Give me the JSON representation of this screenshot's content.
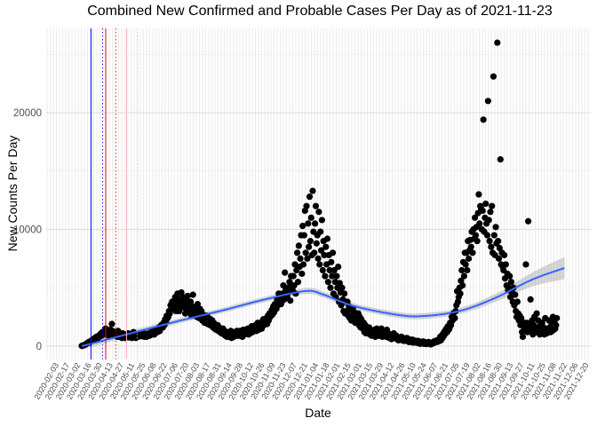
{
  "chart_data": {
    "type": "scatter",
    "title": "Combined New Confirmed and Probable Cases Per Day as of 2021-11-23",
    "xlabel": "Date",
    "ylabel": "New Counts Per Day",
    "xlim": [
      "2020-01-22",
      "2021-12-27"
    ],
    "ylim": [
      -1140,
      27220
    ],
    "y_ticks": [
      0,
      10000,
      20000
    ],
    "y_tick_labels": [
      "0",
      "10000",
      "20000"
    ],
    "y_minor_ticks": [
      5000,
      15000,
      25000
    ],
    "grid": true,
    "point_color": "#000000",
    "x_tick_labels": [
      "2020-02-03",
      "2020-02-17",
      "2020-03-02",
      "2020-03-16",
      "2020-03-30",
      "2020-04-13",
      "2020-04-27",
      "2020-05-11",
      "2020-05-25",
      "2020-06-08",
      "2020-06-22",
      "2020-07-06",
      "2020-07-20",
      "2020-08-03",
      "2020-08-17",
      "2020-08-31",
      "2020-09-14",
      "2020-09-28",
      "2020-10-12",
      "2020-10-26",
      "2020-11-09",
      "2020-11-23",
      "2020-12-07",
      "2020-12-21",
      "2021-01-04",
      "2021-01-18",
      "2021-02-01",
      "2021-02-15",
      "2021-03-01",
      "2021-03-15",
      "2021-03-29",
      "2021-04-12",
      "2021-04-26",
      "2021-05-10",
      "2021-05-24",
      "2021-06-07",
      "2021-06-21",
      "2021-07-05",
      "2021-07-19",
      "2021-08-02",
      "2021-08-16",
      "2021-08-30",
      "2021-09-13",
      "2021-09-27",
      "2021-10-11",
      "2021-10-25",
      "2021-11-08",
      "2021-11-22",
      "2021-12-06",
      "2021-12-20"
    ],
    "x_tick_colors": [
      "#4d4d4d",
      "#3b6fb6",
      "#c8702a",
      "#4d4d4d",
      "#7a5aa8"
    ],
    "daily_counts_by_week": [
      {
        "week_of": "2020-03-08",
        "values": [
          20,
          40,
          60,
          90,
          120,
          150,
          200
        ]
      },
      {
        "week_of": "2020-03-15",
        "values": [
          250,
          300,
          350,
          300,
          400,
          450,
          500
        ]
      },
      {
        "week_of": "2020-03-22",
        "values": [
          500,
          600,
          550,
          700,
          650,
          800,
          750
        ]
      },
      {
        "week_of": "2020-03-29",
        "values": [
          700,
          900,
          800,
          1000,
          1100,
          900,
          1200
        ]
      },
      {
        "week_of": "2020-04-05",
        "values": [
          1000,
          1300,
          1100,
          1500,
          1200,
          1400,
          1000
        ]
      },
      {
        "week_of": "2020-04-12",
        "values": [
          900,
          1200,
          1400,
          1100,
          1900,
          1300,
          1000
        ]
      },
      {
        "week_of": "2020-04-19",
        "values": [
          1000,
          1200,
          900,
          1100,
          800,
          1300,
          1000
        ]
      },
      {
        "week_of": "2020-04-26",
        "values": [
          800,
          1000,
          900,
          700,
          1100,
          850,
          900
        ]
      },
      {
        "week_of": "2020-05-03",
        "values": [
          700,
          900,
          1000,
          800,
          1100,
          750,
          950
        ]
      },
      {
        "week_of": "2020-05-10",
        "values": [
          800,
          1000,
          700,
          900,
          1200,
          850,
          1000
        ]
      },
      {
        "week_of": "2020-05-17",
        "values": [
          700,
          900,
          1000,
          800,
          950,
          1100,
          850
        ]
      },
      {
        "week_of": "2020-05-24",
        "values": [
          900,
          1000,
          850,
          1100,
          800,
          950,
          1050
        ]
      },
      {
        "week_of": "2020-05-31",
        "values": [
          800,
          950,
          1000,
          1100,
          900,
          1050,
          1200
        ]
      },
      {
        "week_of": "2020-06-07",
        "values": [
          1000,
          1100,
          1250,
          1000,
          1300,
          1150,
          1400
        ]
      },
      {
        "week_of": "2020-06-14",
        "values": [
          1200,
          1400,
          1600,
          1300,
          1500,
          1800,
          1700
        ]
      },
      {
        "week_of": "2020-06-21",
        "values": [
          1600,
          2000,
          1800,
          2300,
          2100,
          2600,
          2400
        ]
      },
      {
        "week_of": "2020-06-28",
        "values": [
          2500,
          3000,
          2800,
          3500,
          3200,
          3800,
          3400
        ]
      },
      {
        "week_of": "2020-07-05",
        "values": [
          3200,
          3600,
          4200,
          3000,
          3800,
          4500,
          3400
        ]
      },
      {
        "week_of": "2020-07-12",
        "values": [
          3000,
          4000,
          3600,
          4600,
          3300,
          4200,
          3800
        ]
      },
      {
        "week_of": "2020-07-19",
        "values": [
          3500,
          2800,
          4000,
          3200,
          4300,
          2900,
          3600
        ]
      },
      {
        "week_of": "2020-07-26",
        "values": [
          3000,
          3800,
          2600,
          3400,
          4400,
          3100,
          2700
        ]
      },
      {
        "week_of": "2020-08-02",
        "values": [
          2800,
          3300,
          2500,
          3600,
          2900,
          2400,
          3200
        ]
      },
      {
        "week_of": "2020-08-09",
        "values": [
          2400,
          3000,
          2200,
          2700,
          2500,
          2000,
          2600
        ]
      },
      {
        "week_of": "2020-08-16",
        "values": [
          2100,
          2600,
          1900,
          2400,
          2200,
          1800,
          2300
        ]
      },
      {
        "week_of": "2020-08-23",
        "values": [
          1900,
          2200,
          1600,
          2000,
          1500,
          1800,
          1400
        ]
      },
      {
        "week_of": "2020-08-30",
        "values": [
          1500,
          1800,
          1300,
          1600,
          1200,
          1400,
          1100
        ]
      },
      {
        "week_of": "2020-09-06",
        "values": [
          1200,
          1500,
          1000,
          1300,
          900,
          1100,
          800
        ]
      },
      {
        "week_of": "2020-09-13",
        "values": [
          900,
          1200,
          800,
          1000,
          1300,
          700,
          1100
        ]
      },
      {
        "week_of": "2020-09-20",
        "values": [
          1000,
          800,
          1200,
          900,
          1100,
          1300,
          900
        ]
      },
      {
        "week_of": "2020-09-27",
        "values": [
          1100,
          900,
          1300,
          1000,
          1200,
          800,
          1400
        ]
      },
      {
        "week_of": "2020-10-04",
        "values": [
          1200,
          1000,
          1400,
          1100,
          1300,
          1500,
          1000
        ]
      },
      {
        "week_of": "2020-10-11",
        "values": [
          1300,
          1100,
          1500,
          1700,
          1200,
          1400,
          1600
        ]
      },
      {
        "week_of": "2020-10-18",
        "values": [
          1500,
          1800,
          1300,
          1600,
          2000,
          1400,
          1700
        ]
      },
      {
        "week_of": "2020-10-25",
        "values": [
          1700,
          2000,
          1500,
          1900,
          2300,
          1800,
          2100
        ]
      },
      {
        "week_of": "2020-11-01",
        "values": [
          2000,
          2400,
          1900,
          2600,
          2200,
          2800,
          2500
        ]
      },
      {
        "week_of": "2020-11-08",
        "values": [
          2600,
          3100,
          2700,
          3400,
          2900,
          3600,
          3200
        ]
      },
      {
        "week_of": "2020-11-15",
        "values": [
          3200,
          4000,
          3500,
          4500,
          3800,
          4200,
          3600
        ]
      },
      {
        "week_of": "2020-11-22",
        "values": [
          3800,
          4500,
          5200,
          4000,
          6300,
          4800,
          4300
        ]
      },
      {
        "week_of": "2020-11-29",
        "values": [
          4200,
          5000,
          4600,
          5500,
          3900,
          6000,
          5200
        ]
      },
      {
        "week_of": "2020-12-06",
        "values": [
          4800,
          6000,
          5200,
          7000,
          4500,
          6500,
          8000
        ]
      },
      {
        "week_of": "2020-12-13",
        "values": [
          5500,
          8600,
          6800,
          7500,
          9500,
          6200,
          10300
        ]
      },
      {
        "week_of": "2020-12-20",
        "values": [
          7000,
          9500,
          11600,
          8000,
          12000,
          7500,
          10500
        ]
      },
      {
        "week_of": "2020-12-27",
        "values": [
          8500,
          12800,
          9000,
          11000,
          7800,
          13300,
          9800
        ]
      },
      {
        "week_of": "2021-01-03",
        "values": [
          8000,
          10500,
          12000,
          8800,
          9500,
          7500,
          11500
        ]
      },
      {
        "week_of": "2021-01-10",
        "values": [
          7000,
          9800,
          8200,
          10800,
          6500,
          9000,
          7800
        ]
      },
      {
        "week_of": "2021-01-17",
        "values": [
          6000,
          8500,
          7000,
          9200,
          5500,
          7800,
          6500
        ]
      },
      {
        "week_of": "2021-01-24",
        "values": [
          5000,
          7200,
          6000,
          8000,
          4500,
          6500,
          5500
        ]
      },
      {
        "week_of": "2021-01-31",
        "values": [
          4200,
          6000,
          5000,
          6800,
          3800,
          5400,
          4600
        ]
      },
      {
        "week_of": "2021-02-07",
        "values": [
          3500,
          5000,
          4000,
          3000,
          4500,
          2800,
          3800
        ]
      },
      {
        "week_of": "2021-02-14",
        "values": [
          3000,
          3800,
          2600,
          3400,
          2400,
          3100,
          2200
        ]
      },
      {
        "week_of": "2021-02-21",
        "values": [
          2600,
          3200,
          2200,
          2900,
          2000,
          2700,
          2400
        ]
      },
      {
        "week_of": "2021-02-28",
        "values": [
          2200,
          2800,
          1800,
          2500,
          1600,
          2300,
          2000
        ]
      },
      {
        "week_of": "2021-03-07",
        "values": [
          1500,
          2000,
          1200,
          1800,
          1100,
          1600,
          1400
        ]
      },
      {
        "week_of": "2021-03-14",
        "values": [
          1200,
          1600,
          1000,
          1400,
          900,
          1300,
          1100
        ]
      },
      {
        "week_of": "2021-03-21",
        "values": [
          1000,
          1400,
          800,
          1200,
          1500,
          900,
          1100
        ]
      },
      {
        "week_of": "2021-03-28",
        "values": [
          900,
          1300,
          1000,
          1500,
          800,
          1200,
          1100
        ]
      },
      {
        "week_of": "2021-04-04",
        "values": [
          1000,
          1200,
          800,
          1400,
          900,
          1100,
          700
        ]
      },
      {
        "week_of": "2021-04-11",
        "values": [
          800,
          1000,
          600,
          900,
          700,
          1100,
          800
        ]
      },
      {
        "week_of": "2021-04-18",
        "values": [
          700,
          900,
          600,
          800,
          500,
          750,
          650
        ]
      },
      {
        "week_of": "2021-04-25",
        "values": [
          600,
          800,
          500,
          700,
          450,
          650,
          550
        ]
      },
      {
        "week_of": "2021-05-02",
        "values": [
          500,
          700,
          400,
          600,
          350,
          550,
          450
        ]
      },
      {
        "week_of": "2021-05-09",
        "values": [
          400,
          550,
          300,
          500,
          350,
          450,
          300
        ]
      },
      {
        "week_of": "2021-05-16",
        "values": [
          300,
          450,
          250,
          400,
          200,
          350,
          300
        ]
      },
      {
        "week_of": "2021-05-23",
        "values": [
          250,
          400,
          200,
          350,
          300,
          180,
          280
        ]
      },
      {
        "week_of": "2021-05-30",
        "values": [
          200,
          350,
          250,
          300,
          150,
          280,
          220
        ]
      },
      {
        "week_of": "2021-06-06",
        "values": [
          250,
          400,
          300,
          450,
          350,
          500,
          400
        ]
      },
      {
        "week_of": "2021-06-13",
        "values": [
          400,
          600,
          800,
          500,
          900,
          700,
          1100
        ]
      },
      {
        "week_of": "2021-06-20",
        "values": [
          900,
          1300,
          1100,
          1500,
          1200,
          1700,
          1400
        ]
      },
      {
        "week_of": "2021-06-27",
        "values": [
          1500,
          2000,
          1800,
          2500,
          2200,
          2800,
          2400
        ]
      },
      {
        "week_of": "2021-07-04",
        "values": [
          2400,
          3000,
          3500,
          4700,
          3800,
          4200,
          5000
        ]
      },
      {
        "week_of": "2021-07-11",
        "values": [
          4500,
          5600,
          6500,
          5200,
          7200,
          6000,
          8000
        ]
      },
      {
        "week_of": "2021-07-18",
        "values": [
          7000,
          8000,
          6500,
          9000,
          7500,
          8200,
          9100
        ]
      },
      {
        "week_of": "2021-07-25",
        "values": [
          8500,
          9800,
          8000,
          10000,
          9200,
          11000,
          9500
        ]
      },
      {
        "week_of": "2021-08-01",
        "values": [
          10200,
          9000,
          11400,
          13000,
          10500,
          12000,
          11800
        ]
      },
      {
        "week_of": "2021-08-08",
        "values": [
          10000,
          11600,
          19400,
          9800,
          11000,
          12200,
          10500
        ]
      },
      {
        "week_of": "2021-08-15",
        "values": [
          9500,
          21000,
          10800,
          9000,
          11500,
          8500,
          12000
        ]
      },
      {
        "week_of": "2021-08-22",
        "values": [
          8000,
          23100,
          9500,
          7800,
          10200,
          8800,
          26000
        ]
      },
      {
        "week_of": "2021-08-29",
        "values": [
          9000,
          7500,
          8400,
          16000,
          7000,
          8000,
          6800
        ]
      },
      {
        "week_of": "2021-09-05",
        "values": [
          6500,
          7800,
          5800,
          7000,
          5200,
          6200,
          4800
        ]
      },
      {
        "week_of": "2021-09-12",
        "values": [
          5000,
          6000,
          4200,
          5500,
          4600,
          3800,
          5000
        ]
      },
      {
        "week_of": "2021-09-19",
        "values": [
          3500,
          4400,
          3000,
          2500,
          3800,
          2800,
          2200
        ]
      },
      {
        "week_of": "2021-09-26",
        "values": [
          2600,
          1800,
          2400,
          1200,
          800,
          2000,
          1500
        ]
      },
      {
        "week_of": "2021-10-03",
        "values": [
          1500,
          7000,
          2000,
          1200,
          10700,
          1800,
          1300
        ]
      },
      {
        "week_of": "2021-10-10",
        "values": [
          4000,
          1500,
          2200,
          1000,
          1800,
          2500,
          1300
        ]
      },
      {
        "week_of": "2021-10-17",
        "values": [
          1200,
          2800,
          1600,
          2200,
          1400,
          1000,
          1800
        ]
      },
      {
        "week_of": "2021-10-24",
        "values": [
          1300,
          2000,
          1100,
          1600,
          1000,
          2400,
          1200
        ]
      },
      {
        "week_of": "2021-10-31",
        "values": [
          1100,
          1500,
          1300,
          2200,
          1600,
          1200,
          2000
        ]
      },
      {
        "week_of": "2021-11-07",
        "values": [
          1300,
          2500,
          1400,
          2000,
          1500,
          1800,
          2400
        ]
      }
    ],
    "smooth": {
      "color": "#3366FF",
      "band_color": "#999999",
      "x": [
        "2020-03-08",
        "2020-05-13",
        "2020-07-10",
        "2020-09-05",
        "2020-11-02",
        "2020-12-23",
        "2021-01-15",
        "2021-02-24",
        "2021-04-23",
        "2021-05-27",
        "2021-07-12",
        "2021-08-27",
        "2021-10-12",
        "2021-11-23"
      ],
      "y": [
        0,
        1140,
        2130,
        3040,
        4030,
        4720,
        4410,
        3420,
        2660,
        2590,
        3040,
        4180,
        5700,
        6690
      ],
      "se": [
        300,
        250,
        220,
        220,
        230,
        260,
        260,
        240,
        250,
        250,
        260,
        350,
        600,
        950
      ]
    },
    "reference_lines": [
      {
        "date": "2020-03-20",
        "color": "#0000FF",
        "style": "solid"
      },
      {
        "date": "2020-04-04",
        "color": "#0000FF",
        "style": "dotted"
      },
      {
        "date": "2020-04-08",
        "color": "#FF0000",
        "style": "solid"
      },
      {
        "date": "2020-04-21",
        "color": "#FF0000",
        "style": "dotted"
      },
      {
        "date": "2020-05-05",
        "color": "#FFB6C1",
        "style": "solid"
      },
      {
        "date": "2020-05-19",
        "color": "#FFB6C1",
        "style": "dotted"
      }
    ]
  }
}
